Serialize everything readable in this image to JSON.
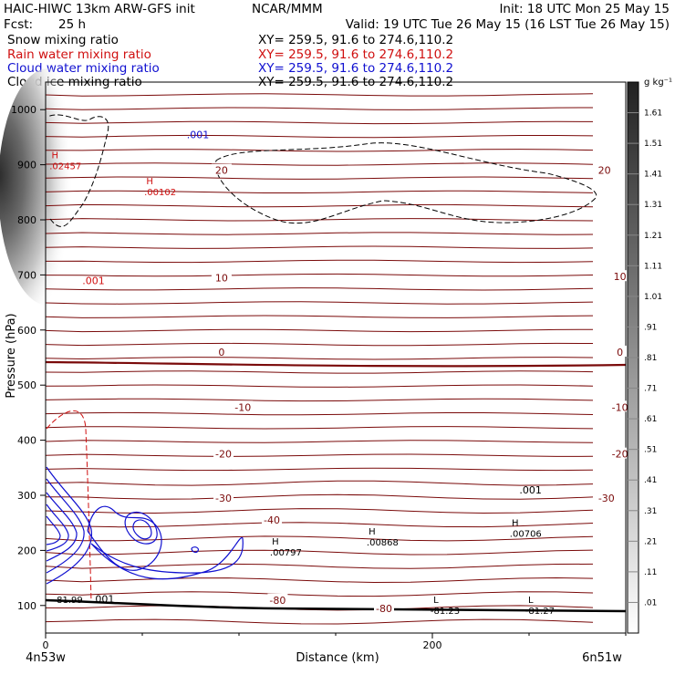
{
  "header": {
    "model": "HAIC-HIWC 13km ARW-GFS init",
    "org": "NCAR/MMM",
    "init": "Init: 18 UTC Mon 25 May 15",
    "fcst_label": "Fcst:",
    "fcst_value": "25 h",
    "valid": "Valid: 19 UTC Tue 26 May 15 (16 LST Tue 26 May 15)",
    "fields": [
      {
        "name": "Snow mixing ratio",
        "xy": "XY= 259.5, 91.6 to 274.6,110.2",
        "color": "#000000"
      },
      {
        "name": "Rain water mixing ratio",
        "xy": "XY= 259.5, 91.6 to 274.6,110.2",
        "color": "#d01010"
      },
      {
        "name": "Cloud water mixing ratio",
        "xy": "XY= 259.5, 91.6 to 274.6,110.2",
        "color": "#1010d0"
      },
      {
        "name": "Cloud ice mixing ratio",
        "xy": "XY= 259.5, 91.6 to 274.6,110.2",
        "color": "#000000"
      }
    ]
  },
  "chart_data": {
    "type": "contour cross-section",
    "xlabel": "Distance (km)",
    "ylabel": "Pressure (hPa)",
    "xlim": [
      0,
      300
    ],
    "ylim": [
      1050,
      50
    ],
    "x_ticks": [
      0,
      200
    ],
    "y_ticks": [
      100,
      200,
      300,
      400,
      500,
      600,
      700,
      800,
      900,
      1000
    ],
    "x_endpoints": [
      "4n53w",
      "6n51w"
    ],
    "colorbar": {
      "unit": "g kg⁻¹",
      "labels": [
        "1.61",
        "1.51",
        "1.41",
        "1.31",
        "1.21",
        "1.11",
        "1.01",
        ".91",
        ".81",
        ".71",
        ".61",
        ".51",
        ".41",
        ".31",
        ".21",
        ".11",
        ".01"
      ]
    },
    "temperature_contour_labels": [
      {
        "label": "-80",
        "x": 175,
        "p": 95
      },
      {
        "label": "-80",
        "x": 120,
        "p": 110
      },
      {
        "label": "-40",
        "x": 117,
        "p": 255
      },
      {
        "label": "-30",
        "x": 92,
        "p": 295
      },
      {
        "label": "-30",
        "x": 290,
        "p": 295
      },
      {
        "label": "-20",
        "x": 92,
        "p": 375
      },
      {
        "label": "-20",
        "x": 297,
        "p": 375
      },
      {
        "label": "-10",
        "x": 102,
        "p": 460
      },
      {
        "label": "-10",
        "x": 297,
        "p": 460
      },
      {
        "label": "0",
        "x": 91,
        "p": 560
      },
      {
        "label": "0",
        "x": 297,
        "p": 560
      },
      {
        "label": "10",
        "x": 91,
        "p": 695
      },
      {
        "label": "10",
        "x": 297,
        "p": 697
      },
      {
        "label": "20",
        "x": 91,
        "p": 890
      },
      {
        "label": "20",
        "x": 289,
        "p": 890
      }
    ],
    "extrema": [
      {
        "kind": "L",
        "x": 199,
        "p": 98,
        "value": "-81.23"
      },
      {
        "kind": "L",
        "x": 248,
        "p": 98,
        "value": "-81.27"
      },
      {
        "kind": "",
        "x": 4,
        "p": 118,
        "value": "-81.99"
      },
      {
        "kind": "H",
        "x": 116,
        "p": 204,
        "value": ".00797"
      },
      {
        "kind": "H",
        "x": 166,
        "p": 222,
        "value": ".00868"
      },
      {
        "kind": "H",
        "x": 240,
        "p": 238,
        "value": ".00706"
      },
      {
        "kind": "H",
        "x": 51,
        "p": 858,
        "value": ".00102"
      },
      {
        "kind": "H",
        "x": 2,
        "p": 905,
        "value": ".02457"
      }
    ],
    "contour_labels": [
      {
        "label": ".001",
        "x": 24,
        "p": 112,
        "color": "#000000"
      },
      {
        "label": ".001",
        "x": 245,
        "p": 310,
        "color": "#000000"
      },
      {
        "label": ".001",
        "x": 19,
        "p": 690,
        "color": "#d01010"
      },
      {
        "label": ".001",
        "x": 73,
        "p": 955,
        "color": "#1010d0"
      }
    ]
  }
}
